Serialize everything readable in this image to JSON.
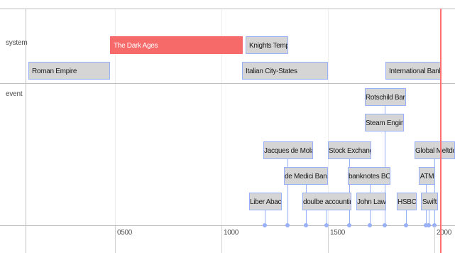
{
  "groups": {
    "system": "system",
    "event": "event"
  },
  "ranges": {
    "roman_empire": "Roman Empire",
    "dark_ages": "The Dark Ages",
    "knights_templar": "Knights Templar",
    "italian_city_states": "Italian City-States",
    "international_banks": "International Banks"
  },
  "events": {
    "rotschild_bank": "Rotschild Bank",
    "steam_engine": "Steam Engine",
    "jacques_de_molay": "Jacques de Molay",
    "stock_exchange": "Stock Exchange",
    "global_meltdown": "Global Meltdown",
    "de_medici_bank": "de Medici Bank",
    "banknotes_boe": "banknotes BOE",
    "atm": "ATM",
    "liber_abaci": "Liber Abaci",
    "double_accounting": "doulbe accounting",
    "john_law": "John Law",
    "hsbc": "HSBC",
    "swift": "Swift"
  },
  "axis": {
    "labels": [
      "0500",
      "1000",
      "1500",
      "2000"
    ]
  },
  "colors": {
    "item_bg": "#d5d5d5",
    "item_border": "#97b0f8",
    "highlight": "#f76a6a",
    "current_time": "#ff7070"
  }
}
